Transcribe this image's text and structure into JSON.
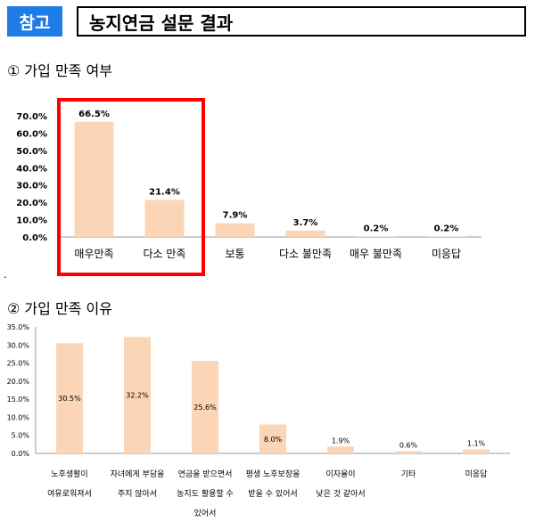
{
  "header": {
    "badge": "참고",
    "title": "농지연금 설문 결과"
  },
  "sections": [
    {
      "label": "① 가입 만족 여부"
    },
    {
      "label": "② 가입 만족 이유"
    }
  ],
  "note_dot": ".",
  "chart_data": [
    {
      "type": "bar",
      "categories": [
        "매우만족",
        "다소 만족",
        "보통",
        "다소 불만족",
        "매우 불만족",
        "미응답"
      ],
      "values": [
        66.5,
        21.4,
        7.9,
        3.7,
        0.2,
        0.2
      ],
      "value_labels": [
        "66.5%",
        "21.4%",
        "7.9%",
        "3.7%",
        "0.2%",
        "0.2%"
      ],
      "yticks": [
        "0.0%",
        "10.0%",
        "20.0%",
        "30.0%",
        "40.0%",
        "50.0%",
        "60.0%",
        "70.0%"
      ],
      "ylim": [
        0,
        70
      ],
      "highlighted_categories": [
        "매우만족",
        "다소 만족"
      ],
      "bar_color": "#fbd5b5",
      "highlight_color": "#ff0000",
      "grid": false
    },
    {
      "type": "bar",
      "categories": [
        [
          "노후생활이",
          "여유로워져서"
        ],
        [
          "자녀에게 부담을",
          "주지 않아서"
        ],
        [
          "연금을 받으면서",
          "농지도 활용할 수",
          "있어서"
        ],
        [
          "평생 노후보장을",
          "받을 수 있어서"
        ],
        [
          "이자율이",
          "낮은 것 같아서"
        ],
        [
          "기타"
        ],
        [
          "미응답"
        ]
      ],
      "values": [
        30.5,
        32.2,
        25.6,
        8.0,
        1.9,
        0.6,
        1.1
      ],
      "value_labels": [
        "30.5%",
        "32.2%",
        "25.6%",
        "8.0%",
        "1.9%",
        "0.6%",
        "1.1%"
      ],
      "yticks": [
        "0.0%",
        "5.0%",
        "10.0%",
        "15.0%",
        "20.0%",
        "25.0%",
        "30.0%",
        "35.0%"
      ],
      "ylim": [
        0,
        35
      ],
      "bar_color": "#fbd5b5",
      "grid": false
    }
  ]
}
